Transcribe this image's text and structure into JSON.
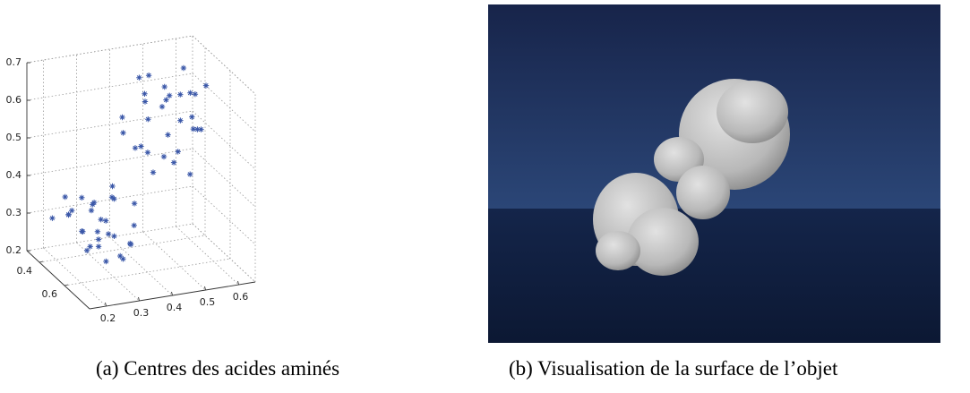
{
  "chart_data": {
    "type": "scatter3d",
    "color": "#3a57a8",
    "grid": true,
    "xlim": [
      0.15,
      0.65
    ],
    "ylim": [
      0.3,
      0.8
    ],
    "zlim": [
      0.2,
      0.7
    ],
    "xticks": [
      0.2,
      0.3,
      0.4,
      0.5,
      0.6
    ],
    "yticks": [
      0.4,
      0.6
    ],
    "zticks": [
      0.2,
      0.3,
      0.4,
      0.5,
      0.6,
      0.7
    ],
    "x": [
      0.17,
      0.2,
      0.22,
      0.25,
      0.18,
      0.28,
      0.3,
      0.23,
      0.26,
      0.33,
      0.21,
      0.35,
      0.27,
      0.19,
      0.31,
      0.24,
      0.29,
      0.36,
      0.22,
      0.32,
      0.2,
      0.26,
      0.34,
      0.28,
      0.17,
      0.3,
      0.23,
      0.38,
      0.25,
      0.21,
      0.4,
      0.45,
      0.5,
      0.55,
      0.42,
      0.48,
      0.52,
      0.58,
      0.6,
      0.44,
      0.5,
      0.56,
      0.38,
      0.47,
      0.53,
      0.62,
      0.41,
      0.49,
      0.57,
      0.46,
      0.54,
      0.6,
      0.43,
      0.51,
      0.59,
      0.39,
      0.48,
      0.55,
      0.63,
      0.45
    ],
    "y": [
      0.45,
      0.5,
      0.62,
      0.55,
      0.7,
      0.48,
      0.6,
      0.72,
      0.66,
      0.52,
      0.58,
      0.45,
      0.75,
      0.64,
      0.7,
      0.5,
      0.56,
      0.6,
      0.42,
      0.68,
      0.74,
      0.6,
      0.48,
      0.52,
      0.58,
      0.44,
      0.66,
      0.55,
      0.78,
      0.5,
      0.4,
      0.45,
      0.5,
      0.38,
      0.55,
      0.6,
      0.42,
      0.48,
      0.36,
      0.5,
      0.58,
      0.44,
      0.46,
      0.35,
      0.52,
      0.4,
      0.62,
      0.48,
      0.55,
      0.42,
      0.38,
      0.5,
      0.47,
      0.65,
      0.44,
      0.53,
      0.4,
      0.57,
      0.46,
      0.6
    ],
    "z": [
      0.33,
      0.35,
      0.3,
      0.37,
      0.32,
      0.36,
      0.31,
      0.29,
      0.34,
      0.38,
      0.33,
      0.36,
      0.3,
      0.35,
      0.32,
      0.39,
      0.34,
      0.33,
      0.37,
      0.31,
      0.34,
      0.36,
      0.4,
      0.3,
      0.38,
      0.35,
      0.33,
      0.37,
      0.32,
      0.36,
      0.55,
      0.6,
      0.52,
      0.58,
      0.5,
      0.48,
      0.62,
      0.55,
      0.64,
      0.57,
      0.5,
      0.6,
      0.53,
      0.63,
      0.56,
      0.58,
      0.47,
      0.59,
      0.54,
      0.61,
      0.57,
      0.52,
      0.49,
      0.46,
      0.6,
      0.51,
      0.65,
      0.55,
      0.62,
      0.5
    ]
  },
  "captions": [
    "(a) Centres des acides aminés",
    "(b) Visualisation de la surface de l’objet"
  ]
}
